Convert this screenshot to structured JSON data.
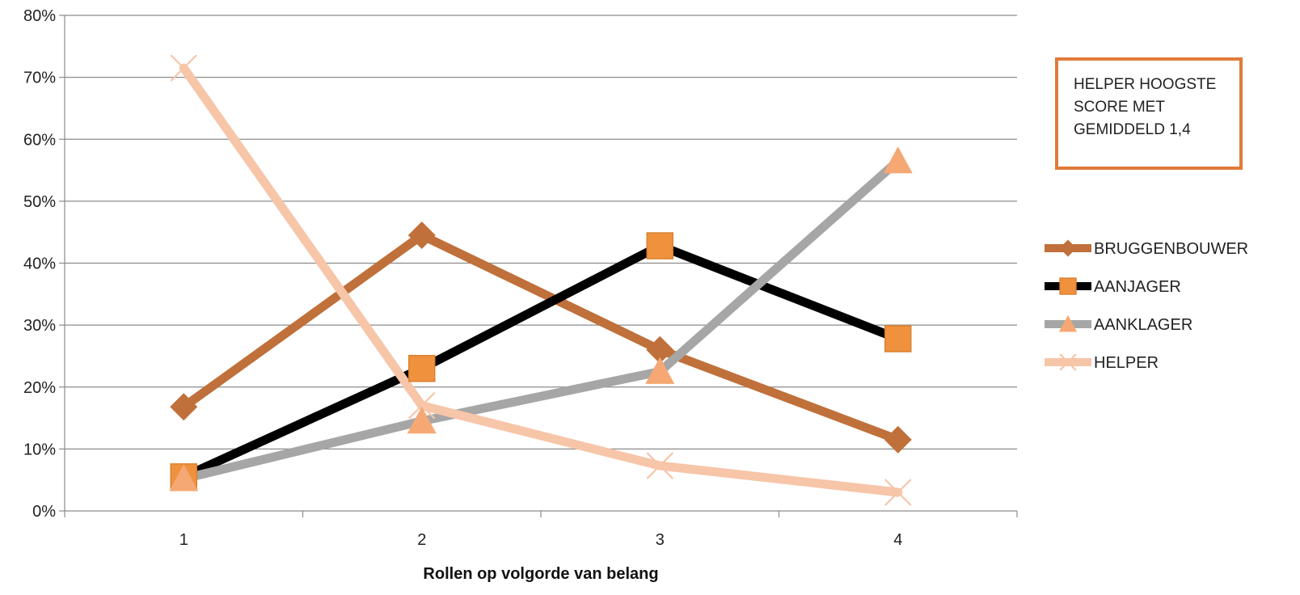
{
  "chart_data": {
    "type": "line",
    "title": "",
    "xlabel": "Rollen op volgorde van belang",
    "ylabel": "",
    "x": [
      "1",
      "2",
      "3",
      "4"
    ],
    "ylim": [
      0,
      80
    ],
    "yticks": [
      "0%",
      "10%",
      "20%",
      "30%",
      "40%",
      "50%",
      "60%",
      "70%",
      "80%"
    ],
    "grid": true,
    "legend": "right",
    "series": [
      {
        "name": "BRUGGENBOUWER",
        "values": [
          16.8,
          44.5,
          26.0,
          11.5
        ],
        "color": "#C0703A",
        "marker_color": "#C0703A",
        "marker": "diamond"
      },
      {
        "name": "AANJAGER",
        "values": [
          5.5,
          23.0,
          42.8,
          27.8
        ],
        "color": "#000000",
        "marker_color": "#F0913E",
        "marker": "square"
      },
      {
        "name": "AANKLAGER",
        "values": [
          5.2,
          14.5,
          22.5,
          56.5
        ],
        "color": "#A6A6A6",
        "marker_color": "#F5A873",
        "marker": "triangle"
      },
      {
        "name": "HELPER",
        "values": [
          71.5,
          17.0,
          7.3,
          3.0
        ],
        "color": "#F7C5A8",
        "marker_color": "#F7C5A8",
        "marker": "x"
      }
    ],
    "annotation": {
      "lines": [
        "HELPER HOOGSTE",
        "SCORE MET",
        "GEMIDDELD 1,4"
      ],
      "border_color": "#E07B39"
    }
  }
}
